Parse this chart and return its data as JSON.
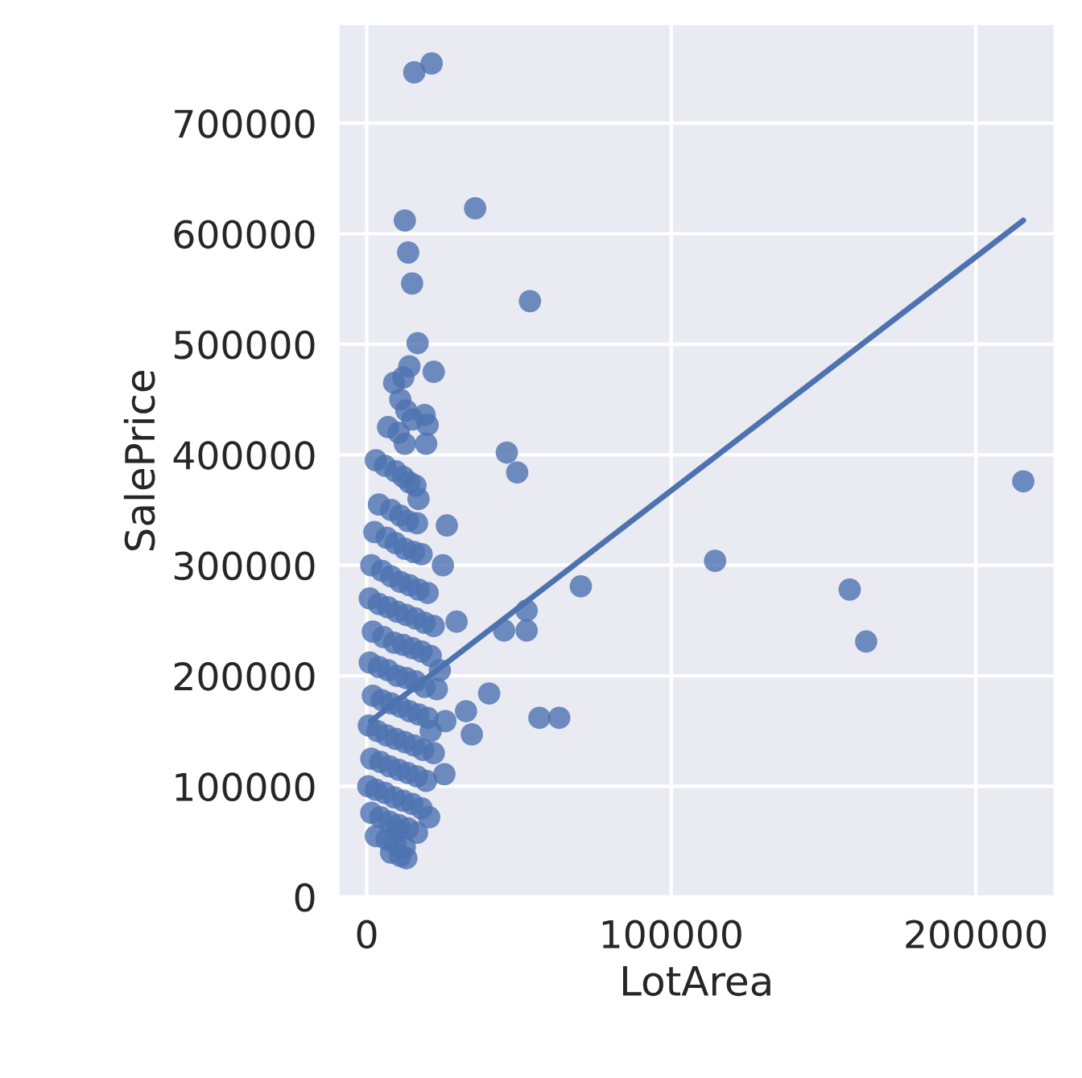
{
  "chart_data": {
    "type": "scatter",
    "xlabel": "LotArea",
    "ylabel": "SalePrice",
    "xlim": [
      -9400,
      226000
    ],
    "ylim": [
      -1000,
      790000
    ],
    "xticks": [
      0,
      100000,
      200000
    ],
    "yticks": [
      0,
      100000,
      200000,
      300000,
      400000,
      500000,
      600000,
      700000
    ],
    "grid": true,
    "series": [
      {
        "color": "#4c72b0",
        "marker": "circle",
        "x": [
          21300,
          15600,
          35600,
          12500,
          13600,
          14900,
          53600,
          16700,
          22000,
          46000,
          49400,
          26300,
          70300,
          114400,
          158600,
          164000,
          215600,
          52500,
          45100,
          52500,
          56700,
          63200,
          40200,
          34500,
          32600,
          29500,
          25800,
          25500,
          9000,
          11000,
          13000,
          7000,
          10500,
          12500,
          15000,
          19000,
          20000,
          3000,
          6000,
          9500,
          12000,
          14000,
          16000,
          4000,
          8000,
          11000,
          13500,
          16500,
          2500,
          6500,
          9500,
          12500,
          15500,
          18000,
          1500,
          5000,
          8000,
          11000,
          14000,
          17000,
          20000,
          1000,
          4000,
          7000,
          10000,
          13000,
          16000,
          19000,
          22000,
          2000,
          5500,
          9000,
          12000,
          15000,
          18000,
          21000,
          1000,
          4000,
          7000,
          10000,
          13000,
          16000,
          19000,
          23000,
          2000,
          5000,
          8000,
          11000,
          14000,
          17000,
          20000,
          700,
          3500,
          6500,
          9500,
          12500,
          15500,
          18500,
          22000,
          1500,
          4500,
          7500,
          10500,
          13500,
          16500,
          19500,
          500,
          3000,
          6000,
          9000,
          12000,
          15000,
          18000,
          1500,
          4500,
          7500,
          10500,
          13500,
          16500,
          3000,
          6500,
          9500,
          12500,
          8000,
          11000,
          13000,
          10000,
          20500,
          21000,
          24000,
          25000,
          17000,
          19500,
          14000,
          12000
        ],
        "values": [
          754000,
          746000,
          623000,
          612000,
          583000,
          555000,
          539000,
          501000,
          475000,
          402000,
          384000,
          336000,
          281000,
          304000,
          278000,
          231000,
          376000,
          259000,
          241000,
          241000,
          162000,
          162000,
          184000,
          147000,
          168000,
          249000,
          159000,
          111000,
          465000,
          450000,
          440000,
          425000,
          420000,
          410000,
          432000,
          436000,
          427000,
          395000,
          390000,
          385000,
          380000,
          375000,
          372000,
          355000,
          350000,
          345000,
          340000,
          338000,
          330000,
          325000,
          320000,
          315000,
          312000,
          310000,
          300000,
          295000,
          290000,
          285000,
          282000,
          278000,
          275000,
          270000,
          265000,
          262000,
          258000,
          255000,
          252000,
          248000,
          245000,
          240000,
          235000,
          230000,
          228000,
          225000,
          222000,
          218000,
          212000,
          208000,
          205000,
          200000,
          198000,
          195000,
          190000,
          188000,
          182000,
          178000,
          175000,
          172000,
          168000,
          165000,
          162000,
          155000,
          150000,
          146000,
          143000,
          140000,
          137000,
          133000,
          130000,
          125000,
          122000,
          118000,
          115000,
          112000,
          109000,
          105000,
          100000,
          97000,
          94000,
          90000,
          87000,
          84000,
          80000,
          76000,
          72000,
          68000,
          65000,
          62000,
          58000,
          55000,
          52000,
          48000,
          45000,
          40000,
          37000,
          35000,
          60000,
          72000,
          150000,
          205000,
          300000,
          360000,
          410000,
          480000,
          470000
        ]
      },
      {
        "type": "line",
        "color": "#4c72b0",
        "x": [
          1300,
          215600
        ],
        "values": [
          159000,
          612000
        ]
      }
    ]
  }
}
